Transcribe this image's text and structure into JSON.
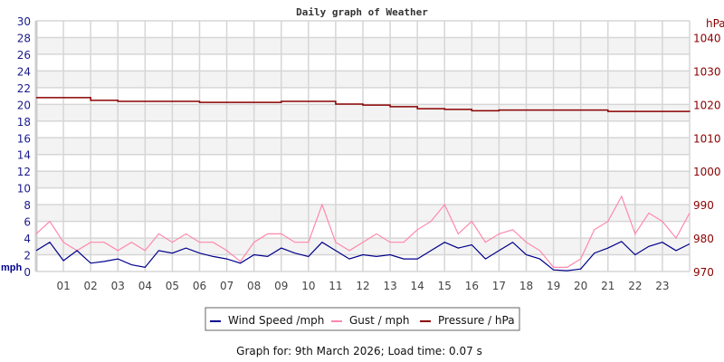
{
  "chart_data": {
    "type": "line",
    "title": "Daily graph of Weather",
    "left_axis": {
      "label": "mph",
      "range": [
        0,
        30
      ],
      "ticks": [
        0,
        2,
        4,
        6,
        8,
        10,
        12,
        14,
        16,
        18,
        20,
        22,
        24,
        26,
        28,
        30
      ],
      "color": "#1a1a8c"
    },
    "right_axis": {
      "label": "hPa",
      "range": [
        970,
        1045
      ],
      "ticks": [
        970,
        980,
        990,
        1000,
        1010,
        1020,
        1030,
        1040
      ],
      "color": "#8b0000"
    },
    "x_axis": {
      "range": [
        0,
        24
      ],
      "tick_labels": [
        "01",
        "02",
        "03",
        "04",
        "05",
        "06",
        "07",
        "08",
        "09",
        "10",
        "11",
        "12",
        "13",
        "14",
        "15",
        "16",
        "17",
        "18",
        "19",
        "20",
        "21",
        "22",
        "23"
      ]
    },
    "grid": true,
    "legend_placement": "bottom",
    "series": [
      {
        "name": "Wind Speed /mph",
        "axis": "left",
        "color": "#00008b",
        "x": [
          0,
          0.5,
          1,
          1.5,
          2,
          2.5,
          3,
          3.5,
          4,
          4.5,
          5,
          5.5,
          6,
          6.5,
          7,
          7.5,
          8,
          8.5,
          9,
          9.5,
          10,
          10.5,
          11,
          11.5,
          12,
          12.5,
          13,
          13.5,
          14,
          14.5,
          15,
          15.5,
          16,
          16.5,
          17,
          17.5,
          18,
          18.5,
          19,
          19.5,
          20,
          20.5,
          21,
          21.5,
          22,
          22.5,
          23,
          23.5,
          24
        ],
        "values": [
          2.5,
          3.5,
          1.3,
          2.5,
          1.0,
          1.2,
          1.5,
          0.8,
          0.5,
          2.5,
          2.2,
          2.8,
          2.2,
          1.8,
          1.5,
          1.0,
          2.0,
          1.8,
          2.8,
          2.2,
          1.8,
          3.5,
          2.5,
          1.5,
          2.0,
          1.8,
          2.0,
          1.5,
          1.5,
          2.5,
          3.5,
          2.8,
          3.2,
          1.5,
          2.5,
          3.5,
          2.0,
          1.5,
          0.2,
          0.1,
          0.3,
          2.2,
          2.8,
          3.6,
          2.0,
          3.0,
          3.5,
          2.5,
          3.3
        ]
      },
      {
        "name": "Gust / mph",
        "axis": "left",
        "color": "#ff88aa",
        "x": [
          0,
          0.5,
          1,
          1.5,
          2,
          2.5,
          3,
          3.5,
          4,
          4.5,
          5,
          5.5,
          6,
          6.5,
          7,
          7.5,
          8,
          8.5,
          9,
          9.5,
          10,
          10.5,
          11,
          11.5,
          12,
          12.5,
          13,
          13.5,
          14,
          14.5,
          15,
          15.5,
          16,
          16.5,
          17,
          17.5,
          18,
          18.5,
          19,
          19.5,
          20,
          20.5,
          21,
          21.5,
          22,
          22.5,
          23,
          23.5,
          24
        ],
        "values": [
          4.5,
          6,
          3.5,
          2.5,
          3.5,
          3.5,
          2.5,
          3.5,
          2.5,
          4.5,
          3.5,
          4.5,
          3.5,
          3.5,
          2.5,
          1.2,
          3.5,
          4.5,
          4.5,
          3.5,
          3.5,
          8,
          3.5,
          2.5,
          3.5,
          4.5,
          3.5,
          3.5,
          5,
          6,
          8,
          4.5,
          6,
          3.5,
          4.5,
          5,
          3.5,
          2.5,
          0.5,
          0.5,
          1.5,
          5,
          6,
          9,
          4.5,
          7,
          6,
          4,
          7
        ]
      },
      {
        "name": "Pressure / hPa",
        "axis": "right",
        "color": "#8b0000",
        "x": [
          0,
          2,
          3,
          6,
          9,
          11,
          12,
          13,
          14,
          15,
          16,
          17,
          20,
          21,
          24
        ],
        "values": [
          1022.0,
          1021.2,
          1020.9,
          1020.6,
          1020.9,
          1020.1,
          1019.8,
          1019.3,
          1018.7,
          1018.5,
          1018.1,
          1018.3,
          1018.3,
          1017.9,
          1017.8
        ]
      }
    ]
  },
  "footer": "Graph for: 9th March 2026; Load time: 0.07 s"
}
